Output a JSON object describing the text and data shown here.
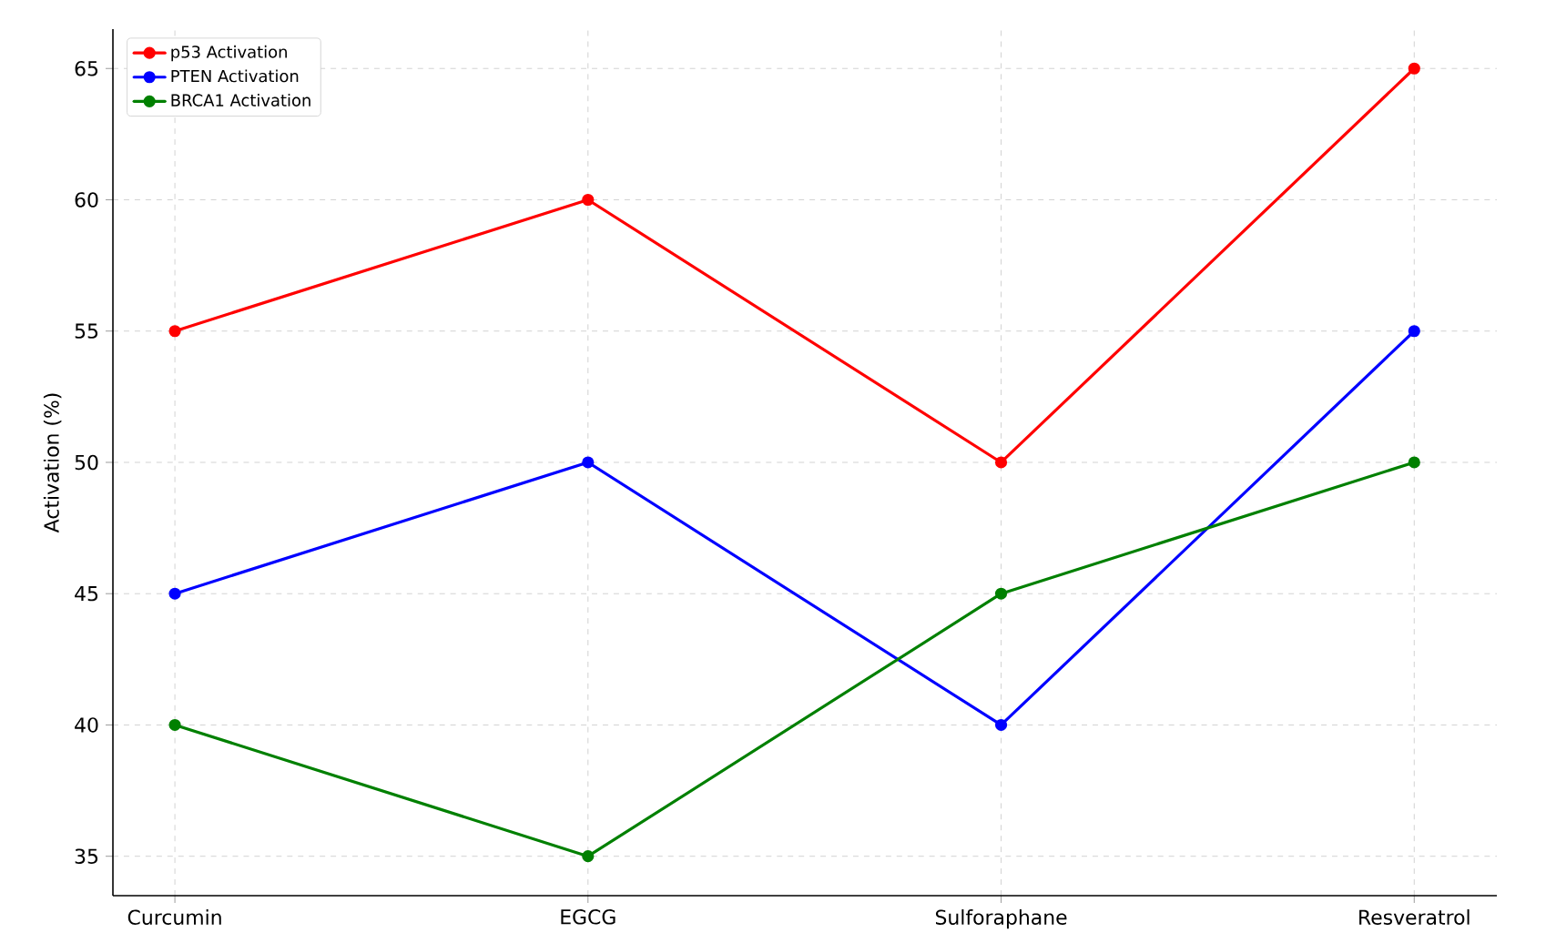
{
  "chart_data": {
    "type": "line",
    "ylabel": "Activation (%)",
    "categories": [
      "Curcumin",
      "EGCG",
      "Sulforaphane",
      "Resveratrol"
    ],
    "series": [
      {
        "name": "p53 Activation",
        "color": "#ff0000",
        "values": [
          55,
          60,
          50,
          65
        ]
      },
      {
        "name": "PTEN Activation",
        "color": "#0000ff",
        "values": [
          45,
          50,
          40,
          55
        ]
      },
      {
        "name": "BRCA1 Activation",
        "color": "#008000",
        "values": [
          40,
          35,
          45,
          50
        ]
      }
    ],
    "ylim": [
      33.5,
      66.5
    ],
    "yticks": [
      35,
      40,
      45,
      50,
      55,
      60,
      65
    ],
    "grid": true,
    "legend": "top left",
    "marker": "circle",
    "line_style": "solid"
  }
}
